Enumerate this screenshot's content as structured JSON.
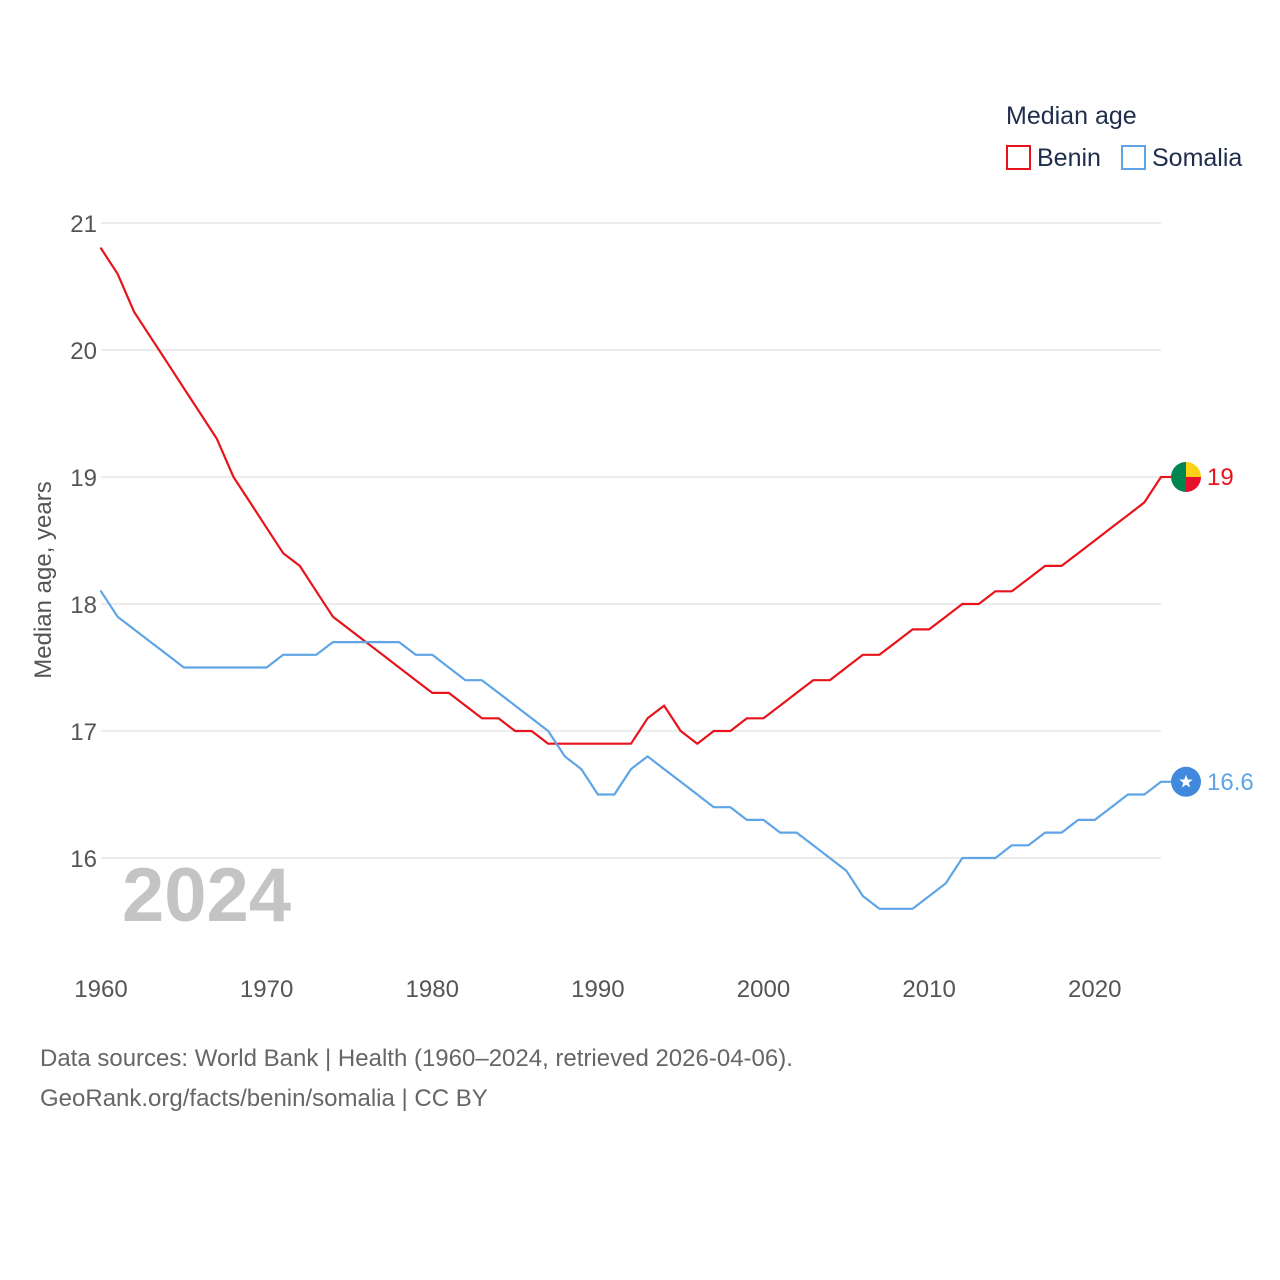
{
  "chart_data": {
    "type": "line",
    "ylabel": "Median age, years",
    "xlabel": "",
    "xlim": [
      1960,
      2024
    ],
    "ylim": [
      15.25,
      21.35
    ],
    "yticks": [
      16,
      17,
      18,
      19,
      20,
      21
    ],
    "xticks": [
      1960,
      1970,
      1980,
      1990,
      2000,
      2010,
      2020
    ],
    "grid": true,
    "legend": {
      "title": "Median age",
      "position": "top-right"
    },
    "year_watermark": "2024",
    "x": [
      1960,
      1961,
      1962,
      1963,
      1964,
      1965,
      1966,
      1967,
      1968,
      1969,
      1970,
      1971,
      1972,
      1973,
      1974,
      1975,
      1976,
      1977,
      1978,
      1979,
      1980,
      1981,
      1982,
      1983,
      1984,
      1985,
      1986,
      1987,
      1988,
      1989,
      1990,
      1991,
      1992,
      1993,
      1994,
      1995,
      1996,
      1997,
      1998,
      1999,
      2000,
      2001,
      2002,
      2003,
      2004,
      2005,
      2006,
      2007,
      2008,
      2009,
      2010,
      2011,
      2012,
      2013,
      2014,
      2015,
      2016,
      2017,
      2018,
      2019,
      2020,
      2021,
      2022,
      2023,
      2024
    ],
    "series": [
      {
        "name": "Benin",
        "color": "#e8141c",
        "end_label": "19",
        "marker": "benin-flag",
        "values": [
          20.8,
          20.6,
          20.3,
          20.1,
          19.9,
          19.7,
          19.5,
          19.3,
          19.0,
          18.8,
          18.6,
          18.4,
          18.3,
          18.1,
          17.9,
          17.8,
          17.7,
          17.6,
          17.5,
          17.4,
          17.3,
          17.3,
          17.2,
          17.1,
          17.1,
          17.0,
          17.0,
          16.9,
          16.9,
          16.9,
          16.9,
          16.9,
          16.9,
          17.1,
          17.2,
          17.0,
          16.9,
          17.0,
          17.0,
          17.1,
          17.1,
          17.2,
          17.3,
          17.4,
          17.4,
          17.5,
          17.6,
          17.6,
          17.7,
          17.8,
          17.8,
          17.9,
          18.0,
          18.0,
          18.1,
          18.1,
          18.2,
          18.3,
          18.3,
          18.4,
          18.5,
          18.6,
          18.7,
          18.8,
          19.0
        ]
      },
      {
        "name": "Somalia",
        "color": "#5fa5e6",
        "end_label": "16.6",
        "marker": "somalia-flag",
        "values": [
          18.1,
          17.9,
          17.8,
          17.7,
          17.6,
          17.5,
          17.5,
          17.5,
          17.5,
          17.5,
          17.5,
          17.6,
          17.6,
          17.6,
          17.7,
          17.7,
          17.7,
          17.7,
          17.7,
          17.6,
          17.6,
          17.5,
          17.4,
          17.4,
          17.3,
          17.2,
          17.1,
          17.0,
          16.8,
          16.7,
          16.5,
          16.5,
          16.7,
          16.8,
          16.7,
          16.6,
          16.5,
          16.4,
          16.4,
          16.3,
          16.3,
          16.2,
          16.2,
          16.1,
          16.0,
          15.9,
          15.7,
          15.6,
          15.6,
          15.6,
          15.7,
          15.8,
          16.0,
          16.0,
          16.0,
          16.1,
          16.1,
          16.2,
          16.2,
          16.3,
          16.3,
          16.4,
          16.5,
          16.5,
          16.6
        ]
      }
    ]
  },
  "footer": {
    "line1": "Data sources: World Bank | Health (1960–2024, retrieved 2026-04-06).",
    "line2": "GeoRank.org/facts/benin/somalia | CC BY"
  }
}
